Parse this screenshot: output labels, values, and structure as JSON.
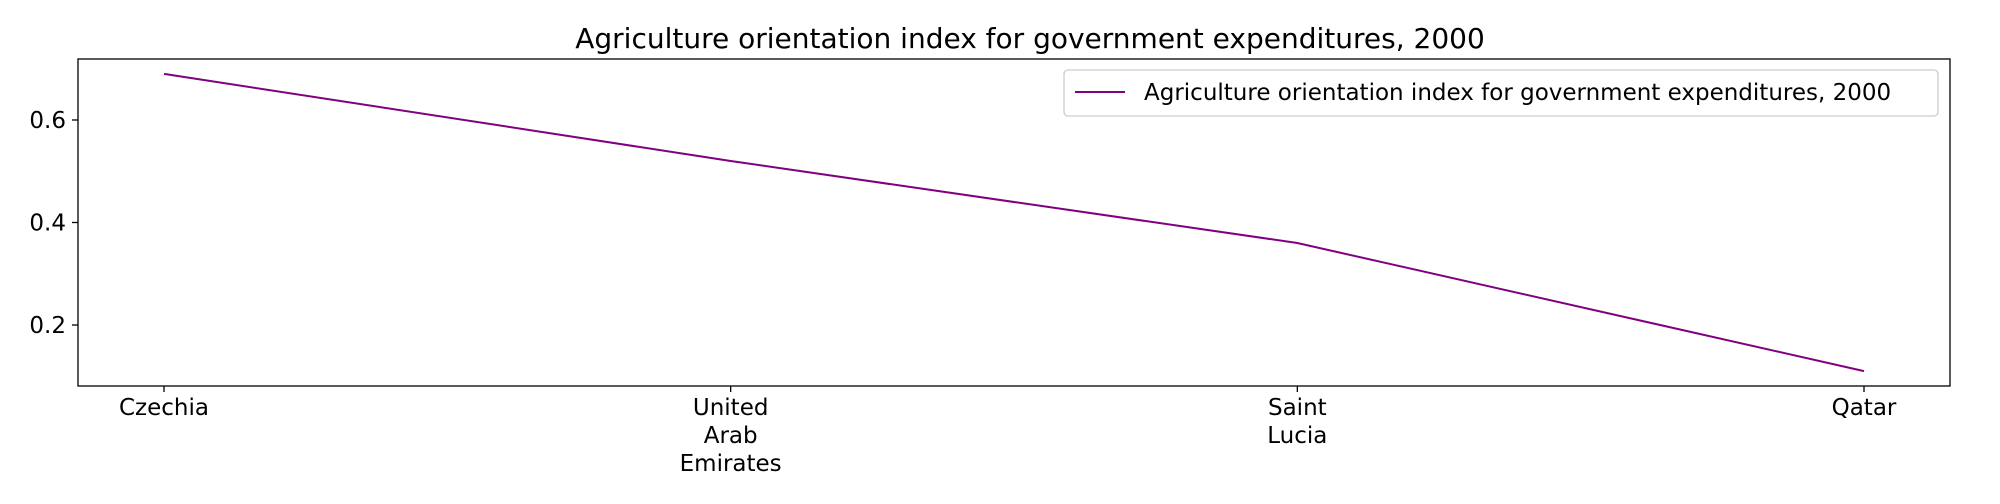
{
  "chart_data": {
    "type": "line",
    "title": "Agriculture orientation index for government expenditures, 2000",
    "xlabel": "",
    "ylabel": "",
    "categories": [
      "Czechia",
      "United\nArab\nEmirates",
      "Saint\nLucia",
      "Qatar"
    ],
    "series": [
      {
        "name": "Agriculture orientation index for government expenditures, 2000",
        "values": [
          0.69,
          0.52,
          0.36,
          0.11
        ],
        "color": "#800080"
      }
    ],
    "ylim": [
      0.081,
      0.719
    ],
    "yticks": [
      0.2,
      0.4,
      0.6
    ],
    "ytick_labels": [
      "0.2",
      "0.4",
      "0.6"
    ],
    "grid": false,
    "legend_position": "top-right"
  }
}
